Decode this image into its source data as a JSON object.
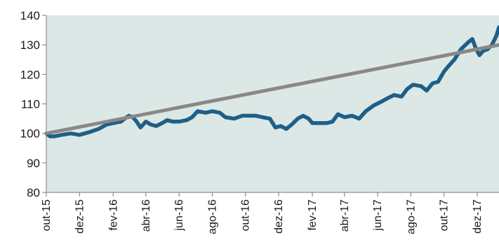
{
  "chart_data": {
    "type": "line",
    "title": "",
    "xlabel": "",
    "ylabel": "",
    "ylim": [
      80,
      140
    ],
    "yticks": [
      80,
      90,
      100,
      110,
      120,
      130,
      140
    ],
    "x_range": [
      "2015-10-01",
      "2018-01-10"
    ],
    "xticks": [
      {
        "date": "2015-10-01",
        "label": "out-15"
      },
      {
        "date": "2015-12-01",
        "label": "dez-15"
      },
      {
        "date": "2016-02-01",
        "label": "fev-16"
      },
      {
        "date": "2016-04-01",
        "label": "abr-16"
      },
      {
        "date": "2016-06-01",
        "label": "jun-16"
      },
      {
        "date": "2016-08-01",
        "label": "ago-16"
      },
      {
        "date": "2016-10-01",
        "label": "out-16"
      },
      {
        "date": "2016-12-01",
        "label": "dez-16"
      },
      {
        "date": "2017-02-01",
        "label": "fev-17"
      },
      {
        "date": "2017-04-01",
        "label": "abr-17"
      },
      {
        "date": "2017-06-01",
        "label": "jun-17"
      },
      {
        "date": "2017-08-01",
        "label": "ago-17"
      },
      {
        "date": "2017-10-01",
        "label": "out-17"
      },
      {
        "date": "2017-12-01",
        "label": "dez-17"
      }
    ],
    "grid": false,
    "plot_background": "#dbe8e6",
    "series": [
      {
        "color": "#1f5f87",
        "points": [
          [
            "2015-10-01",
            100
          ],
          [
            "2015-10-08",
            99
          ],
          [
            "2015-10-15",
            99
          ],
          [
            "2015-10-29",
            99.5
          ],
          [
            "2015-11-15",
            100
          ],
          [
            "2015-12-01",
            99.5
          ],
          [
            "2015-12-20",
            100.5
          ],
          [
            "2016-01-05",
            101.5
          ],
          [
            "2016-01-20",
            103
          ],
          [
            "2016-02-01",
            103.5
          ],
          [
            "2016-02-15",
            104
          ],
          [
            "2016-02-22",
            105
          ],
          [
            "2016-03-01",
            106
          ],
          [
            "2016-03-08",
            105.5
          ],
          [
            "2016-03-15",
            104
          ],
          [
            "2016-03-22",
            102
          ],
          [
            "2016-04-01",
            104
          ],
          [
            "2016-04-10",
            103
          ],
          [
            "2016-04-20",
            102.5
          ],
          [
            "2016-05-01",
            103.5
          ],
          [
            "2016-05-10",
            104.5
          ],
          [
            "2016-05-20",
            104
          ],
          [
            "2016-06-01",
            104
          ],
          [
            "2016-06-15",
            104.5
          ],
          [
            "2016-06-25",
            105.5
          ],
          [
            "2016-07-05",
            107.5
          ],
          [
            "2016-07-20",
            107
          ],
          [
            "2016-08-01",
            107.5
          ],
          [
            "2016-08-15",
            107
          ],
          [
            "2016-08-25",
            105.5
          ],
          [
            "2016-09-10",
            105
          ],
          [
            "2016-09-25",
            106
          ],
          [
            "2016-10-05",
            106
          ],
          [
            "2016-10-20",
            106
          ],
          [
            "2016-11-01",
            105.5
          ],
          [
            "2016-11-15",
            105
          ],
          [
            "2016-11-25",
            102
          ],
          [
            "2016-12-05",
            102.5
          ],
          [
            "2016-12-15",
            101.5
          ],
          [
            "2016-12-25",
            103
          ],
          [
            "2017-01-05",
            105
          ],
          [
            "2017-01-15",
            106
          ],
          [
            "2017-01-25",
            105
          ],
          [
            "2017-02-01",
            103.5
          ],
          [
            "2017-02-15",
            103.5
          ],
          [
            "2017-02-28",
            103.5
          ],
          [
            "2017-03-10",
            104
          ],
          [
            "2017-03-20",
            106.5
          ],
          [
            "2017-04-01",
            105.5
          ],
          [
            "2017-04-15",
            106
          ],
          [
            "2017-04-28",
            105
          ],
          [
            "2017-05-10",
            107.5
          ],
          [
            "2017-05-25",
            109.5
          ],
          [
            "2017-06-05",
            110.5
          ],
          [
            "2017-06-20",
            112
          ],
          [
            "2017-07-01",
            113
          ],
          [
            "2017-07-15",
            112.5
          ],
          [
            "2017-07-25",
            115
          ],
          [
            "2017-08-05",
            116.5
          ],
          [
            "2017-08-20",
            116
          ],
          [
            "2017-08-30",
            114.5
          ],
          [
            "2017-09-10",
            117
          ],
          [
            "2017-09-20",
            117.5
          ],
          [
            "2017-10-01",
            121
          ],
          [
            "2017-10-10",
            123
          ],
          [
            "2017-10-20",
            125
          ],
          [
            "2017-11-01",
            128.5
          ],
          [
            "2017-11-15",
            131
          ],
          [
            "2017-11-22",
            132
          ],
          [
            "2017-11-28",
            129
          ],
          [
            "2017-12-05",
            126.5
          ],
          [
            "2017-12-12",
            128
          ],
          [
            "2017-12-20",
            128.5
          ],
          [
            "2017-12-28",
            130
          ],
          [
            "2018-01-05",
            133
          ],
          [
            "2018-01-10",
            136
          ]
        ]
      },
      {
        "color": "#8a8885",
        "points": [
          [
            "2015-10-01",
            100
          ],
          [
            "2018-01-10",
            130
          ]
        ]
      }
    ]
  }
}
